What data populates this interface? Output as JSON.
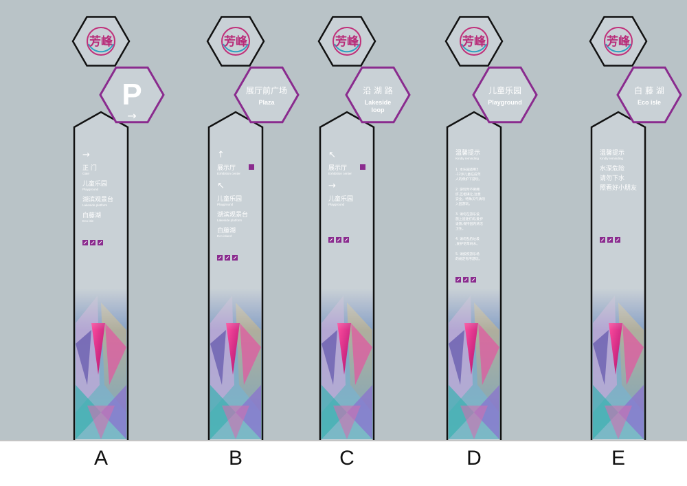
{
  "colors": {
    "background": "#b9c3c7",
    "post_fill": "#c9d1d6",
    "purple": "#8a2b8e",
    "text_white": "#ffffff",
    "hex_outline": "#111111"
  },
  "logo": {
    "icon": "mountain-peak-logo",
    "text": "芳峰"
  },
  "signs": [
    {
      "label": "A",
      "hex": {
        "kind": "parking",
        "main": "P",
        "arrow": "→"
      },
      "items": [
        {
          "arrow": "→"
        },
        {
          "zh": "正 门",
          "en": "Gate"
        },
        {
          "zh": "儿童乐园",
          "en": "Playground"
        },
        {
          "zh": "湖滨观景台",
          "en": "Lakeside platform"
        },
        {
          "zh": "白藤湖",
          "en": "Eco isle"
        }
      ]
    },
    {
      "label": "B",
      "hex": {
        "kind": "text",
        "zh": "展厅前广场",
        "en": "Plaza"
      },
      "items": [
        {
          "arrow": "↑"
        },
        {
          "zh": "展示厅",
          "en": "Exhibition center",
          "badge": "⊡"
        },
        {
          "arrow": "↖"
        },
        {
          "zh": "儿童乐园",
          "en": "Playground"
        },
        {
          "zh": "湖滨观景台",
          "en": "Lakeside platform"
        },
        {
          "zh": "白藤湖",
          "en": "Eco island"
        }
      ]
    },
    {
      "label": "C",
      "hex": {
        "kind": "text",
        "zh": "沿 湖 路",
        "en": "Lakeside loop"
      },
      "items": [
        {
          "arrow": "↖"
        },
        {
          "zh": "展示厅",
          "en": "Exhibition center",
          "badge": "⊡"
        },
        {
          "arrow": "→"
        },
        {
          "zh": "儿童乐园",
          "en": "Playground"
        }
      ]
    },
    {
      "label": "D",
      "hex": {
        "kind": "text",
        "zh": "儿童乐园",
        "en": "Playground"
      },
      "items": [
        {
          "zh": "温馨提示",
          "en": "Kindly reminding"
        },
        {
          "note": "1. 本乐园适用3-12岁儿童在成年人的保护下游玩。"
        },
        {
          "note": "2. 游玩时不要拥挤,互相谦让,注意安全。特殊天气请勿入园游玩。"
        },
        {
          "note": "3. 请勿在游乐设施上追逐打闹,爱护设施,保持园内清洁卫生。"
        },
        {
          "note": "4. 请勿乱扔垃圾,爱护花草树木。"
        },
        {
          "note": "5. 请按照游乐场的规定有序游玩。"
        }
      ]
    },
    {
      "label": "E",
      "hex": {
        "kind": "text",
        "zh": "白 藤 湖",
        "en": "Eco isle"
      },
      "items": [
        {
          "zh": "温馨提示",
          "en": "Kindly reminding"
        },
        {
          "zh": "水深危险"
        },
        {
          "zh": "请勿下水"
        },
        {
          "zh": "照看好小朋友"
        }
      ]
    }
  ],
  "icons": [
    "restroom-icon",
    "no-smoking-icon",
    "no-dogs-icon"
  ]
}
